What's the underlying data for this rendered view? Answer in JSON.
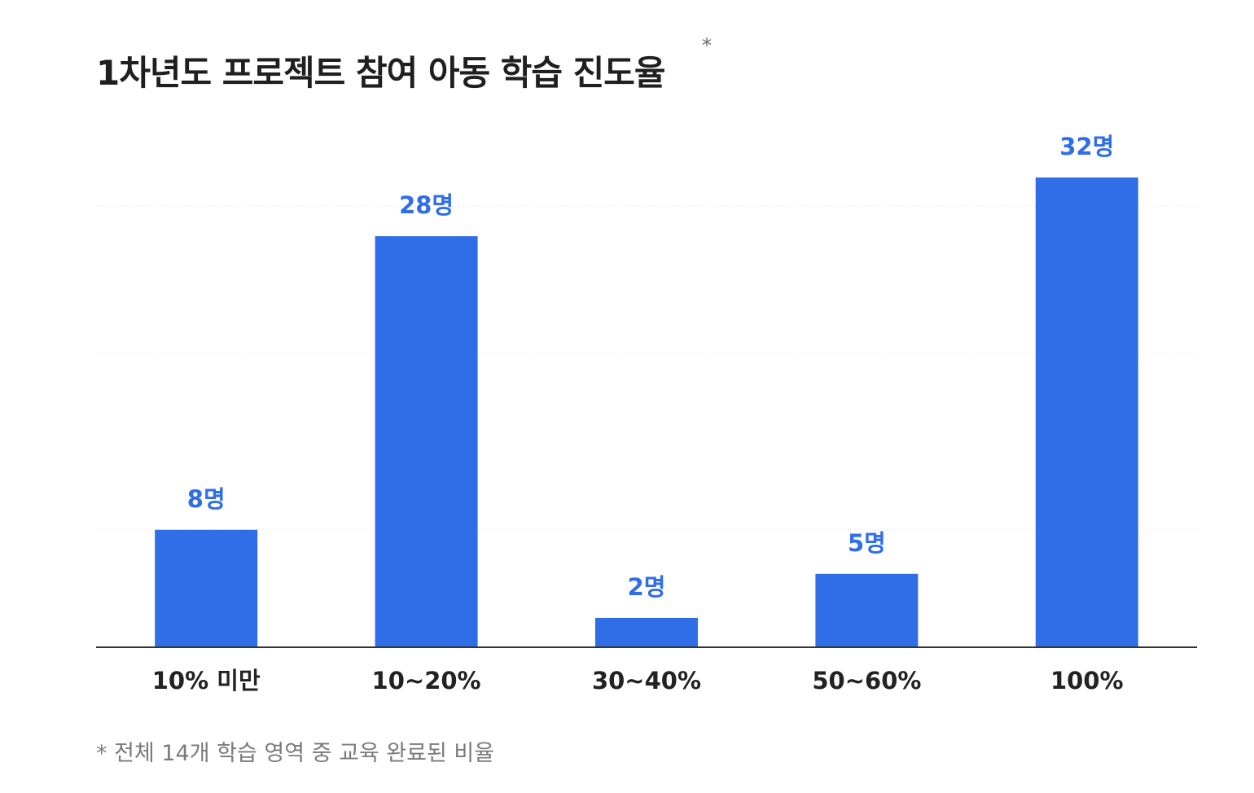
{
  "header": {
    "title": "1차년도 프로젝트 참여 아동 학습 진도율",
    "title_mark": "*"
  },
  "chart_data": {
    "type": "bar",
    "categories": [
      "10% 미만",
      "10~20%",
      "30~40%",
      "50~60%",
      "100%"
    ],
    "values": [
      8,
      28,
      2,
      5,
      32
    ],
    "data_labels": [
      "8명",
      "28명",
      "2명",
      "5명",
      "32명"
    ],
    "title": "1차년도 프로젝트 참여 아동 학습 진도율",
    "xlabel": "",
    "ylabel": "",
    "ylim": [
      0,
      32
    ],
    "grid": true,
    "legend": "none",
    "colors": {
      "bar": "#306ee8",
      "label": "#306ee8",
      "axis": "#333333",
      "grid": "#eeeeee",
      "tick": "#222222"
    }
  },
  "footnote": "* 전체 14개 학습 영역 중 교육 완료된 비율"
}
